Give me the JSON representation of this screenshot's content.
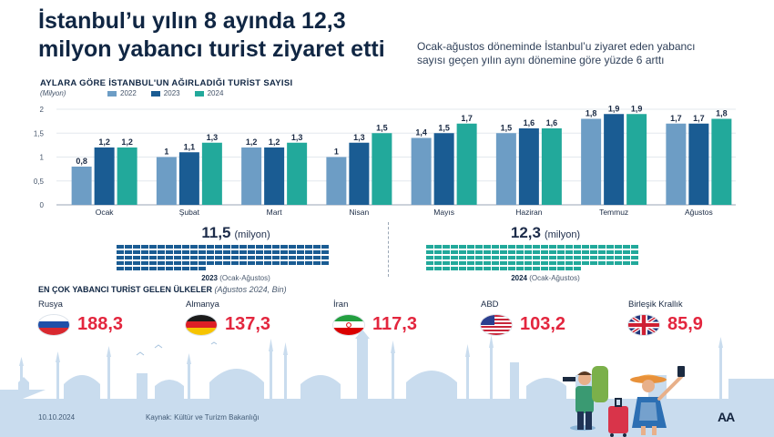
{
  "title": "İstanbul’u yılın 8 ayında 12,3 milyon yabancı turist ziyaret etti",
  "subtitle": "Ocak-ağustos döneminde İstanbul’u ziyaret eden yabancı sayısı geçen yılın aynı dönemine göre yüzde 6 arttı",
  "chart_heading": "AYLARA GÖRE İSTANBUL'UN AĞIRLADIĞI TURİST SAYISI",
  "chart_data": {
    "type": "bar",
    "title": "AYLARA GÖRE İSTANBUL'UN AĞIRLADIĞI TURİST SAYISI",
    "ylabel": "(Milyon)",
    "xlabel": "",
    "ylim": [
      0,
      2
    ],
    "yticks": [
      "0",
      "0,5",
      "1",
      "1,5",
      "2"
    ],
    "ytick_values": [
      0,
      0.5,
      1,
      1.5,
      2
    ],
    "categories": [
      "Ocak",
      "Şubat",
      "Mart",
      "Nisan",
      "Mayıs",
      "Haziran",
      "Temmuz",
      "Ağustos"
    ],
    "series": [
      {
        "name": "2022",
        "color": "#6d9dc5",
        "values": [
          0.8,
          1.0,
          1.2,
          1.0,
          1.4,
          1.5,
          1.8,
          1.7
        ],
        "labels": [
          "0,8",
          "1",
          "1,2",
          "1",
          "1,4",
          "1,5",
          "1,8",
          "1,7"
        ]
      },
      {
        "name": "2023",
        "color": "#1a5c93",
        "values": [
          1.2,
          1.1,
          1.2,
          1.3,
          1.5,
          1.6,
          1.9,
          1.7
        ],
        "labels": [
          "1,2",
          "1,1",
          "1,2",
          "1,3",
          "1,5",
          "1,6",
          "1,9",
          "1,7"
        ]
      },
      {
        "name": "2024",
        "color": "#22a99b",
        "values": [
          1.2,
          1.3,
          1.3,
          1.5,
          1.7,
          1.6,
          1.9,
          1.8
        ],
        "labels": [
          "1,2",
          "1,3",
          "1,3",
          "1,5",
          "1,7",
          "1,6",
          "1,9",
          "1,8"
        ]
      }
    ],
    "grid": true,
    "legend": "top-left"
  },
  "totals": [
    {
      "value": "11,5",
      "unit": "(milyon)",
      "year": "2023",
      "period": "(Ocak-Ağustos)",
      "amount": 11.5,
      "color": "#1a5c93"
    },
    {
      "value": "12,3",
      "unit": "(milyon)",
      "year": "2024",
      "period": "(Ocak-Ağustos)",
      "amount": 12.3,
      "color": "#22a99b"
    }
  ],
  "countries_heading": "EN ÇOK YABANCI TURİST GELEN ÜLKELER",
  "countries_note": "(Ağustos 2024, Bin)",
  "countries": [
    {
      "name": "Rusya",
      "value": "188,3",
      "flag": "flag-russia-icon"
    },
    {
      "name": "Almanya",
      "value": "137,3",
      "flag": "flag-germany-icon"
    },
    {
      "name": "İran",
      "value": "117,3",
      "flag": "flag-iran-icon"
    },
    {
      "name": "ABD",
      "value": "103,2",
      "flag": "flag-usa-icon"
    },
    {
      "name": "Birleşik Krallık",
      "value": "85,9",
      "flag": "flag-uk-icon"
    }
  ],
  "footer": {
    "date": "10.10.2024",
    "source": "Kaynak: Kültür ve Turizm Bakanlığı",
    "logo": "AA"
  },
  "colors": {
    "value_red": "#e3263e",
    "navy": "#102643",
    "skyline": "#c9dcee"
  }
}
